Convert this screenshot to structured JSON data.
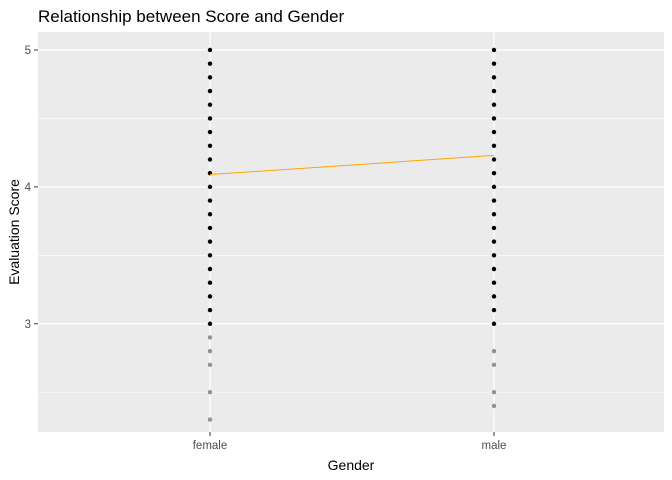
{
  "chart_data": {
    "type": "scatter",
    "title": "Relationship between Score and Gender",
    "xlabel": "Gender",
    "ylabel": "Evaluation Score",
    "categories": [
      "female",
      "male"
    ],
    "ylim": [
      2.18,
      5.0
    ],
    "yticks": [
      3,
      4,
      5
    ],
    "grid": true,
    "panel_background": "#ebebeb",
    "point_color": "#000000",
    "point_alpha": 0.3,
    "trend_color": "#ffa500",
    "series": [
      {
        "category": "female",
        "values": [
          5.0,
          4.9,
          4.8,
          4.7,
          4.6,
          4.5,
          4.4,
          4.3,
          4.2,
          4.1,
          4.0,
          3.9,
          3.8,
          3.7,
          3.6,
          3.5,
          3.4,
          3.3,
          3.2,
          3.1,
          3.0,
          2.9,
          2.8,
          2.7,
          2.5,
          2.3
        ]
      },
      {
        "category": "male",
        "values": [
          5.0,
          4.9,
          4.8,
          4.7,
          4.6,
          4.5,
          4.4,
          4.3,
          4.2,
          4.1,
          4.0,
          3.9,
          3.8,
          3.7,
          3.6,
          3.5,
          3.4,
          3.3,
          3.2,
          3.1,
          3.0,
          2.8,
          2.7,
          2.5,
          2.4
        ]
      }
    ],
    "trend_line": {
      "x": [
        "female",
        "male"
      ],
      "y": [
        4.09,
        4.23
      ]
    }
  }
}
